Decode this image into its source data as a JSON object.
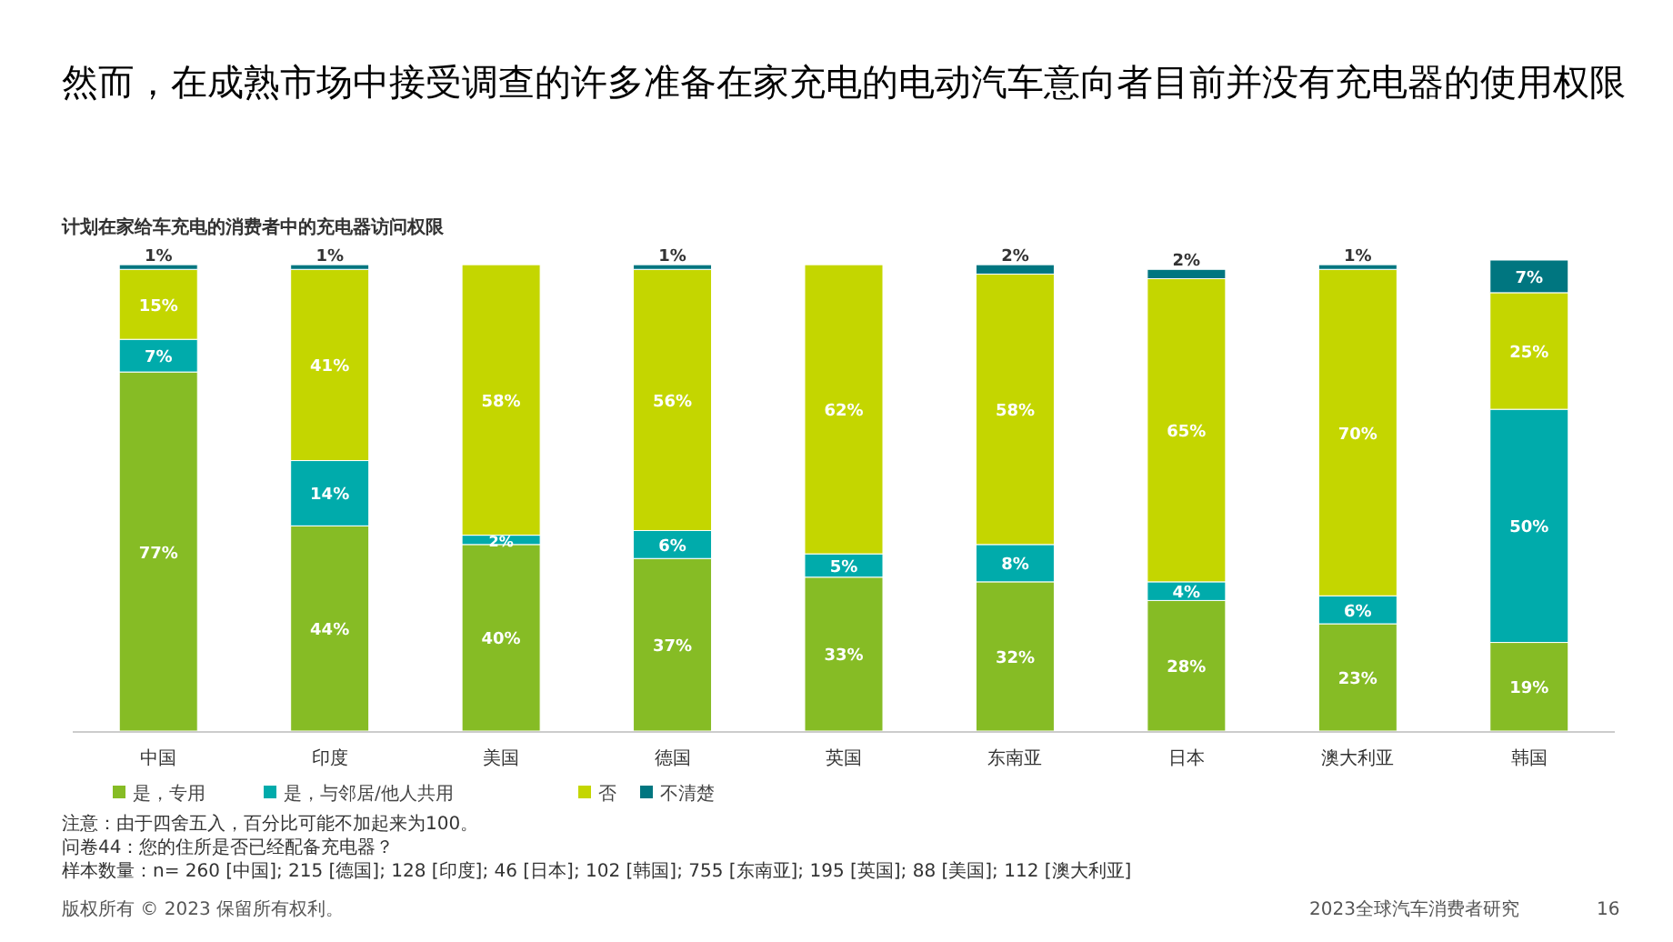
{
  "chart_data": {
    "type": "bar",
    "stacked": true,
    "title": "然而，在成熟市场中接受调查的许多准备在家充电的电动汽车意向者目前并没有充电器的使用权限",
    "subtitle": "计划在家给车充电的消费者中的充电器访问权限",
    "categories": [
      "中国",
      "印度",
      "美国",
      "德国",
      "英国",
      "东南亚",
      "日本",
      "澳大利亚",
      "韩国"
    ],
    "series": [
      {
        "name": "是，专用",
        "color": "#86bc25",
        "values": [
          77,
          44,
          40,
          37,
          33,
          32,
          28,
          23,
          19
        ],
        "value_labels": [
          "77%",
          "44%",
          "40%",
          "37%",
          "33%",
          "32%",
          "28%",
          "23%",
          "19%"
        ]
      },
      {
        "name": "是，与邻居/他人共用",
        "color": "#00abab",
        "values": [
          7,
          14,
          2,
          6,
          5,
          8,
          4,
          6,
          50
        ],
        "value_labels": [
          "7%",
          "14%",
          "2%",
          "6%",
          "5%",
          "8%",
          "4%",
          "6%",
          "50%"
        ]
      },
      {
        "name": "否",
        "color": "#c4d600",
        "values": [
          15,
          41,
          58,
          56,
          62,
          58,
          65,
          70,
          25
        ],
        "value_labels": [
          "15%",
          "41%",
          "58%",
          "56%",
          "62%",
          "58%",
          "65%",
          "70%",
          "25%"
        ]
      },
      {
        "name": "不清楚",
        "color": "#007680",
        "values": [
          1,
          1,
          null,
          1,
          null,
          2,
          2,
          1,
          7
        ],
        "value_labels": [
          "1%",
          "1%",
          null,
          "1%",
          null,
          "2%",
          "2%",
          "1%",
          "7%"
        ]
      }
    ],
    "legend": "bottom",
    "grid": false,
    "annotations": [
      "注意：由于四舍五入，百分比可能不加起来为100。",
      "问卷44：您的住所是否已经配备充电器？",
      "样本数量：n= 260 [中国]; 215 [德国]; 128 [印度]; 46 [日本]; 102 [韩国]; 755 [东南亚]; 195 [英国]; 88 [美国]; 112 [澳大利亚]",
      "版权所有 © 2023 保留所有权利。",
      "2023全球汽车消费者研究",
      "16"
    ]
  }
}
